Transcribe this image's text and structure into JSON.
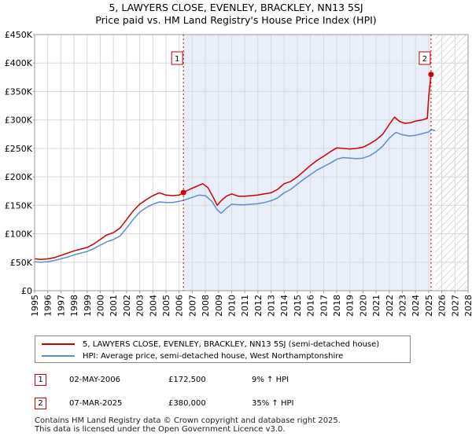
{
  "title": {
    "line1": "5, LAWYERS CLOSE, EVENLEY, BRACKLEY, NN13 5SJ",
    "line2": "Price paid vs. HM Land Registry's House Price Index (HPI)"
  },
  "chart_data": {
    "type": "line",
    "title": "5, LAWYERS CLOSE, EVENLEY, BRACKLEY, NN13 5SJ — Price paid vs. HM Land Registry's House Price Index (HPI)",
    "xlabel": "",
    "ylabel": "",
    "xlim": [
      1995,
      2028
    ],
    "ylim": [
      0,
      450000
    ],
    "x_ticks": [
      "1995",
      "1996",
      "1997",
      "1998",
      "1999",
      "2000",
      "2001",
      "2002",
      "2003",
      "2004",
      "2005",
      "2006",
      "2007",
      "2008",
      "2009",
      "2010",
      "2011",
      "2012",
      "2013",
      "2014",
      "2015",
      "2016",
      "2017",
      "2018",
      "2019",
      "2020",
      "2021",
      "2022",
      "2023",
      "2024",
      "2025",
      "2026",
      "2027",
      "2028"
    ],
    "y_ticks": [
      {
        "value": 0,
        "label": "£0"
      },
      {
        "value": 50000,
        "label": "£50K"
      },
      {
        "value": 100000,
        "label": "£100K"
      },
      {
        "value": 150000,
        "label": "£150K"
      },
      {
        "value": 200000,
        "label": "£200K"
      },
      {
        "value": 250000,
        "label": "£250K"
      },
      {
        "value": 300000,
        "label": "£300K"
      },
      {
        "value": 350000,
        "label": "£350K"
      },
      {
        "value": 400000,
        "label": "£400K"
      },
      {
        "value": 450000,
        "label": "£450K"
      }
    ],
    "grid": true,
    "shaded_ownership": {
      "from": 2006.33,
      "to": 2025.18,
      "color": "#e8eefa"
    },
    "hatched_future": {
      "from": 2025.5,
      "to": 2028
    },
    "series": [
      {
        "name": "5, LAWYERS CLOSE, EVENLEY, BRACKLEY, NN13 5SJ (semi-detached house)",
        "color": "#cc0000",
        "x": [
          1995,
          1995.5,
          1996,
          1996.5,
          1997,
          1997.5,
          1998,
          1998.5,
          1999,
          1999.5,
          2000,
          2000.5,
          2001,
          2001.5,
          2002,
          2002.5,
          2003,
          2003.5,
          2004,
          2004.5,
          2005,
          2005.5,
          2006,
          2006.33,
          2006.8,
          2007.3,
          2007.8,
          2008.2,
          2008.6,
          2008.9,
          2009.2,
          2009.6,
          2010,
          2010.5,
          2011,
          2011.5,
          2012,
          2012.5,
          2013,
          2013.5,
          2014,
          2014.5,
          2015,
          2015.5,
          2016,
          2016.5,
          2017,
          2017.5,
          2018,
          2018.5,
          2019,
          2019.5,
          2020,
          2020.5,
          2021,
          2021.5,
          2022,
          2022.4,
          2022.8,
          2023.2,
          2023.6,
          2024,
          2024.5,
          2024.9,
          2025.0,
          2025.18
        ],
        "y": [
          56000,
          55000,
          56000,
          58000,
          62000,
          66000,
          70000,
          73000,
          76000,
          82000,
          90000,
          98000,
          102000,
          110000,
          125000,
          140000,
          152000,
          160000,
          167000,
          172000,
          168000,
          167000,
          168000,
          172500,
          178000,
          183000,
          188000,
          181000,
          164000,
          150000,
          158000,
          166000,
          170000,
          166000,
          166000,
          167000,
          168000,
          170000,
          172000,
          178000,
          188000,
          192000,
          200000,
          210000,
          220000,
          229000,
          236000,
          244000,
          251000,
          250000,
          249000,
          250000,
          252000,
          258000,
          265000,
          275000,
          292000,
          305000,
          297000,
          294000,
          295000,
          298000,
          300000,
          303000,
          340000,
          380000
        ]
      },
      {
        "name": "HPI: Average price, semi-detached house, West Northamptonshire",
        "color": "#5b8fc7",
        "x": [
          1995,
          1995.5,
          1996,
          1996.5,
          1997,
          1997.5,
          1998,
          1998.5,
          1999,
          1999.5,
          2000,
          2000.5,
          2001,
          2001.5,
          2002,
          2002.5,
          2003,
          2003.5,
          2004,
          2004.5,
          2005,
          2005.5,
          2006,
          2006.5,
          2007,
          2007.5,
          2008,
          2008.5,
          2008.9,
          2009.2,
          2009.6,
          2010,
          2010.5,
          2011,
          2011.5,
          2012,
          2012.5,
          2013,
          2013.5,
          2014,
          2014.5,
          2015,
          2015.5,
          2016,
          2016.5,
          2017,
          2017.5,
          2018,
          2018.5,
          2019,
          2019.5,
          2020,
          2020.5,
          2021,
          2021.5,
          2022,
          2022.5,
          2023,
          2023.5,
          2024,
          2024.5,
          2025,
          2025.2,
          2025.5
        ],
        "y": [
          51000,
          50000,
          51000,
          53000,
          56000,
          59000,
          63000,
          66000,
          69000,
          74000,
          80000,
          86000,
          90000,
          96000,
          110000,
          125000,
          138000,
          146000,
          152000,
          156000,
          155000,
          155000,
          157000,
          160000,
          164000,
          168000,
          167000,
          157000,
          142000,
          136000,
          145000,
          152000,
          151000,
          151000,
          152000,
          153000,
          155000,
          158000,
          163000,
          172000,
          178000,
          187000,
          196000,
          204000,
          212000,
          218000,
          224000,
          231000,
          234000,
          233000,
          232000,
          233000,
          237000,
          244000,
          254000,
          268000,
          278000,
          274000,
          272000,
          273000,
          276000,
          279000,
          283000,
          281000
        ]
      }
    ],
    "annotations": [
      {
        "label": "1",
        "x": 2006.33,
        "y": 172500
      },
      {
        "label": "2",
        "x": 2025.18,
        "y": 380000
      }
    ]
  },
  "legend": {
    "property_label": "5, LAWYERS CLOSE, EVENLEY, BRACKLEY, NN13 5SJ (semi-detached house)",
    "hpi_label": "HPI: Average price, semi-detached house, West Northamptonshire"
  },
  "sales": [
    {
      "marker": "1",
      "date": "02-MAY-2006",
      "price": "£172,500",
      "hpi_change": "9% ↑ HPI"
    },
    {
      "marker": "2",
      "date": "07-MAR-2025",
      "price": "£380,000",
      "hpi_change": "35% ↑ HPI"
    }
  ],
  "footer": {
    "line1": "Contains HM Land Registry data © Crown copyright and database right 2025.",
    "line2": "This data is licensed under the Open Government Licence v3.0."
  },
  "colors": {
    "property": "#cc0000",
    "hpi": "#5b8fc7",
    "shade": "#e8eefa",
    "grid": "#d9d9d9"
  }
}
